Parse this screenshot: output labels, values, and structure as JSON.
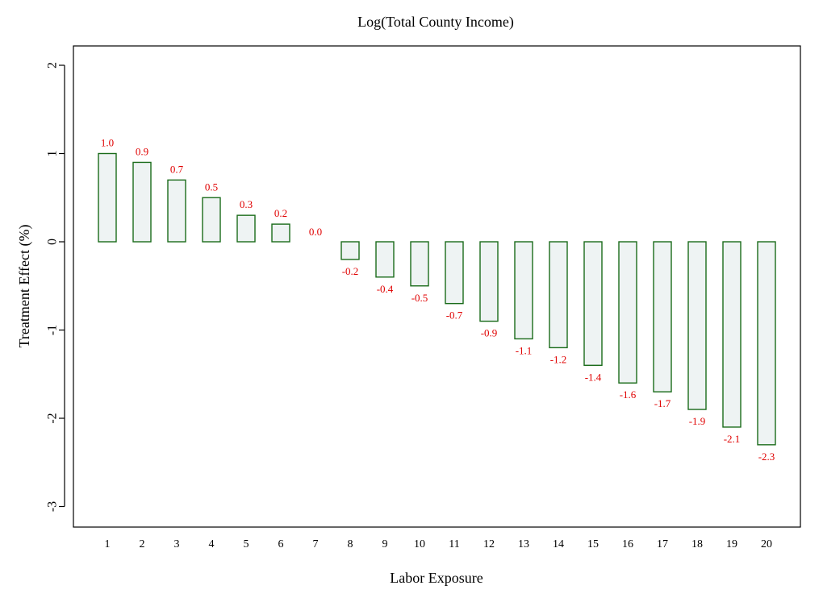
{
  "chart_data": {
    "type": "bar",
    "title": "Log(Total County Income)",
    "xlabel": "Labor Exposure",
    "ylabel": "Treatment Effect (%)",
    "categories": [
      "1",
      "2",
      "3",
      "4",
      "5",
      "6",
      "7",
      "8",
      "9",
      "10",
      "11",
      "12",
      "13",
      "14",
      "15",
      "16",
      "17",
      "18",
      "19",
      "20"
    ],
    "values": [
      1.0,
      0.9,
      0.7,
      0.5,
      0.3,
      0.2,
      0.0,
      -0.2,
      -0.4,
      -0.5,
      -0.7,
      -0.9,
      -1.1,
      -1.2,
      -1.4,
      -1.6,
      -1.7,
      -1.9,
      -2.1,
      -2.3
    ],
    "value_labels": [
      "1.0",
      "0.9",
      "0.7",
      "0.5",
      "0.3",
      "0.2",
      "0.0",
      "-0.2",
      "-0.4",
      "-0.5",
      "-0.7",
      "-0.9",
      "-1.1",
      "-1.2",
      "-1.4",
      "-1.6",
      "-1.7",
      "-1.9",
      "-2.1",
      "-2.3"
    ],
    "ylim": [
      -3.25,
      2.2
    ],
    "yticks": [
      -3,
      -2,
      -1,
      0,
      1,
      2
    ],
    "ytick_labels": [
      "-3",
      "-2",
      "-1",
      "0",
      "1",
      "2"
    ],
    "grid": false,
    "colors": {
      "bar_fill": "#eef3f3",
      "bar_stroke": "#1a6b1a",
      "value_label": "#e00000",
      "axis": "#000000"
    }
  }
}
